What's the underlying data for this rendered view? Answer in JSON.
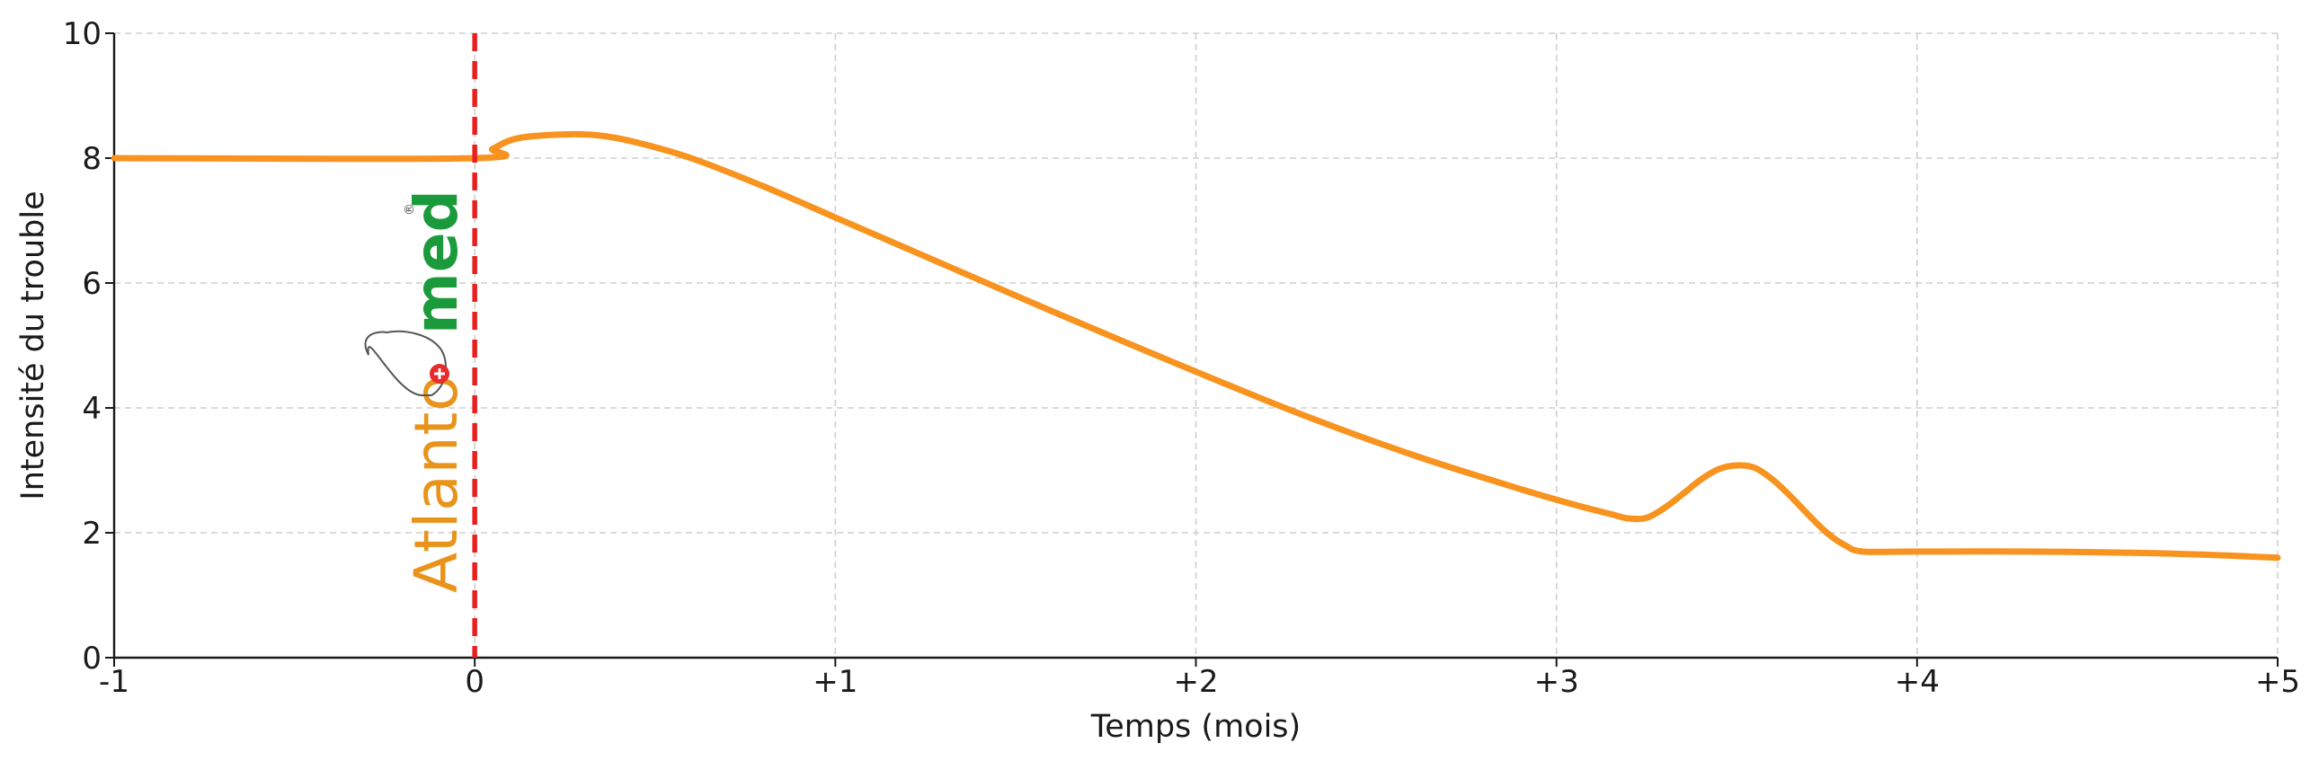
{
  "chart_data": {
    "type": "line",
    "title": "",
    "xlabel": "Temps (mois)",
    "ylabel": "Intensité du trouble",
    "xlim": [
      -1,
      5
    ],
    "ylim": [
      0,
      10
    ],
    "xticks": [
      {
        "value": -1,
        "label": "-1"
      },
      {
        "value": 0,
        "label": "0"
      },
      {
        "value": 1,
        "label": "+1"
      },
      {
        "value": 2,
        "label": "+2"
      },
      {
        "value": 3,
        "label": "+3"
      },
      {
        "value": 4,
        "label": "+4"
      },
      {
        "value": 5,
        "label": "+5"
      }
    ],
    "yticks": [
      {
        "value": 0,
        "label": "0"
      },
      {
        "value": 2,
        "label": "2"
      },
      {
        "value": 4,
        "label": "4"
      },
      {
        "value": 6,
        "label": "6"
      },
      {
        "value": 8,
        "label": "8"
      },
      {
        "value": 10,
        "label": "10"
      }
    ],
    "grid": true,
    "series": [
      {
        "color": "#f7931e",
        "x": [
          -1,
          0,
          0.05,
          0.12,
          0.25,
          0.35,
          0.45,
          0.6,
          0.8,
          1.0,
          1.3,
          1.6,
          2.0,
          2.3,
          2.6,
          2.9,
          3.05,
          3.15,
          3.2,
          3.25,
          3.3,
          3.35,
          3.4,
          3.45,
          3.5,
          3.55,
          3.6,
          3.65,
          3.7,
          3.75,
          3.8,
          3.85,
          4.0,
          4.3,
          4.6,
          4.8,
          5.0
        ],
        "y": [
          8.0,
          8.0,
          8.15,
          8.32,
          8.38,
          8.36,
          8.25,
          8.0,
          7.55,
          7.05,
          6.3,
          5.55,
          4.58,
          3.88,
          3.25,
          2.7,
          2.45,
          2.3,
          2.23,
          2.24,
          2.4,
          2.62,
          2.85,
          3.02,
          3.08,
          3.04,
          2.85,
          2.58,
          2.28,
          2.0,
          1.8,
          1.7,
          1.7,
          1.7,
          1.68,
          1.65,
          1.6
        ]
      }
    ],
    "vertical_lines": [
      {
        "x": 0,
        "color": "#e8201e",
        "style": "dashed"
      }
    ]
  },
  "logo": {
    "text_main": "Atlanto",
    "text_accent": "med",
    "registered": "®",
    "color_main": "#e8931a",
    "color_accent": "#1a9a3a"
  }
}
